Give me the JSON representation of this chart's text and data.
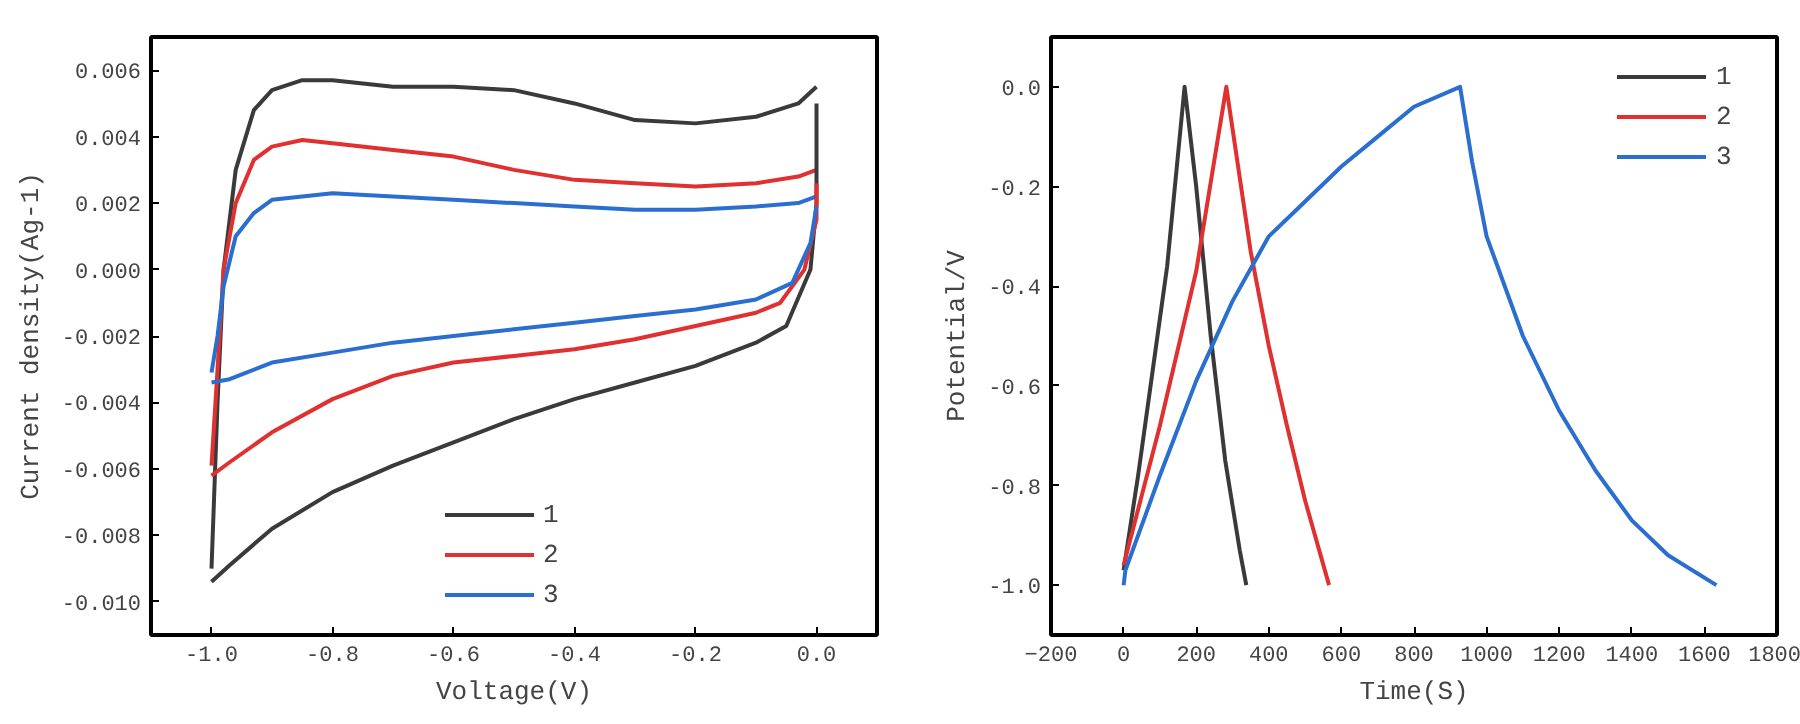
{
  "chart_data": [
    {
      "type": "line",
      "xlabel": "Voltage(V)",
      "ylabel": "Current density(Ag-1)",
      "xlim": [
        -1.1,
        0.1
      ],
      "ylim": [
        -0.011,
        0.007
      ],
      "xticks": [
        {
          "value": -1.0,
          "label": "-1.0"
        },
        {
          "value": -0.8,
          "label": "-0.8"
        },
        {
          "value": -0.6,
          "label": "-0.6"
        },
        {
          "value": -0.4,
          "label": "-0.4"
        },
        {
          "value": -0.2,
          "label": "-0.2"
        },
        {
          "value": 0.0,
          "label": "0.0"
        }
      ],
      "yticks": [
        {
          "value": 0.006,
          "label": "0.006"
        },
        {
          "value": 0.004,
          "label": "0.004"
        },
        {
          "value": 0.002,
          "label": "0.002"
        },
        {
          "value": 0.0,
          "label": "0.000"
        },
        {
          "value": -0.002,
          "label": "-0.002"
        },
        {
          "value": -0.004,
          "label": "-0.004"
        },
        {
          "value": -0.006,
          "label": "-0.006"
        },
        {
          "value": -0.008,
          "label": "-0.008"
        },
        {
          "value": -0.01,
          "label": "-0.010"
        }
      ],
      "grid": false,
      "legend": "bottom",
      "line_style": "solid",
      "series": [
        {
          "name": "1",
          "color": "#3a3a3a",
          "x": [
            -1.0,
            -0.99,
            -0.98,
            -0.96,
            -0.93,
            -0.9,
            -0.85,
            -0.8,
            -0.7,
            -0.6,
            -0.5,
            -0.4,
            -0.3,
            -0.2,
            -0.1,
            -0.03,
            0.0
          ],
          "values": [
            -0.009,
            -0.004,
            0.0,
            0.003,
            0.0048,
            0.0054,
            0.0057,
            0.0057,
            0.0055,
            0.0055,
            0.0054,
            0.005,
            0.0045,
            0.0044,
            0.0046,
            0.005,
            0.0055
          ]
        },
        {
          "name": "2",
          "color": "#e03030",
          "x": [
            -1.0,
            -0.99,
            -0.98,
            -0.96,
            -0.93,
            -0.9,
            -0.85,
            -0.8,
            -0.7,
            -0.6,
            -0.5,
            -0.4,
            -0.3,
            -0.2,
            -0.1,
            -0.03,
            0.0
          ],
          "values": [
            -0.0059,
            -0.003,
            0.0,
            0.002,
            0.0033,
            0.0037,
            0.0039,
            0.0038,
            0.0036,
            0.0034,
            0.003,
            0.0027,
            0.0026,
            0.0025,
            0.0026,
            0.0028,
            0.003
          ]
        },
        {
          "name": "3",
          "color": "#2a6fcf",
          "x": [
            -1.0,
            -0.99,
            -0.98,
            -0.96,
            -0.93,
            -0.9,
            -0.85,
            -0.8,
            -0.7,
            -0.6,
            -0.5,
            -0.4,
            -0.3,
            -0.2,
            -0.1,
            -0.03,
            0.0
          ],
          "values": [
            -0.0031,
            -0.002,
            -0.0005,
            0.001,
            0.0017,
            0.0021,
            0.0022,
            0.0023,
            0.0022,
            0.0021,
            0.002,
            0.0019,
            0.0018,
            0.0018,
            0.0019,
            0.002,
            0.0022
          ]
        },
        {
          "color": "#3a3a3a",
          "x": [
            -1.0,
            -0.97,
            -0.9,
            -0.8,
            -0.7,
            -0.6,
            -0.5,
            -0.4,
            -0.3,
            -0.2,
            -0.1,
            -0.05,
            -0.01,
            0.0,
            0.0
          ],
          "values": [
            -0.0094,
            -0.0089,
            -0.0078,
            -0.0067,
            -0.0059,
            -0.0052,
            -0.0045,
            -0.0039,
            -0.0034,
            -0.0029,
            -0.0022,
            -0.0017,
            0.0,
            0.002,
            0.005
          ]
        },
        {
          "color": "#e03030",
          "x": [
            -1.0,
            -0.97,
            -0.9,
            -0.8,
            -0.7,
            -0.6,
            -0.5,
            -0.4,
            -0.3,
            -0.2,
            -0.1,
            -0.06,
            -0.02,
            0.0,
            0.0
          ],
          "values": [
            -0.0062,
            -0.0058,
            -0.0049,
            -0.0039,
            -0.0032,
            -0.0028,
            -0.0026,
            -0.0024,
            -0.0021,
            -0.0017,
            -0.0013,
            -0.001,
            0.0,
            0.0015,
            0.0026
          ]
        },
        {
          "color": "#2a6fcf",
          "x": [
            -1.0,
            -0.97,
            -0.9,
            -0.8,
            -0.7,
            -0.6,
            -0.5,
            -0.4,
            -0.3,
            -0.2,
            -0.1,
            -0.04,
            -0.01,
            0.0
          ],
          "values": [
            -0.0034,
            -0.0033,
            -0.0028,
            -0.0025,
            -0.0022,
            -0.002,
            -0.0018,
            -0.0016,
            -0.0014,
            -0.0012,
            -0.0009,
            -0.0004,
            0.0008,
            0.0019
          ]
        }
      ]
    },
    {
      "type": "line",
      "xlabel": "Time(S)",
      "ylabel": "Potential/V",
      "xlim": [
        -200,
        1800
      ],
      "ylim": [
        -1.1,
        0.1
      ],
      "xticks": [
        -200,
        0,
        200,
        400,
        600,
        800,
        1000,
        1200,
        1400,
        1600,
        1800
      ],
      "yticks": [
        {
          "value": 0.0,
          "label": "0.0"
        },
        {
          "value": -0.2,
          "label": "-0.2"
        },
        {
          "value": -0.4,
          "label": "-0.4"
        },
        {
          "value": -0.6,
          "label": "-0.6"
        },
        {
          "value": -0.8,
          "label": "-0.8"
        },
        {
          "value": -1.0,
          "label": "-1.0"
        }
      ],
      "grid": false,
      "legend": "top right",
      "line_style": "solid",
      "series": [
        {
          "name": "1",
          "color": "#3a3a3a",
          "x": [
            0,
            40,
            80,
            120,
            168,
            200,
            240,
            280,
            320,
            338
          ],
          "values": [
            -0.97,
            -0.78,
            -0.57,
            -0.36,
            0.0,
            -0.2,
            -0.5,
            -0.75,
            -0.93,
            -1.0
          ]
        },
        {
          "name": "2",
          "color": "#e03030",
          "x": [
            0,
            100,
            200,
            283,
            350,
            400,
            450,
            500,
            566
          ],
          "values": [
            -0.96,
            -0.68,
            -0.37,
            0.0,
            -0.33,
            -0.52,
            -0.68,
            -0.83,
            -1.0
          ]
        },
        {
          "name": "3",
          "color": "#2a6fcf",
          "x": [
            0,
            5,
            100,
            200,
            300,
            400,
            500,
            600,
            700,
            800,
            927,
            960,
            1000,
            1100,
            1200,
            1300,
            1400,
            1500,
            1633
          ],
          "values": [
            -1.0,
            -0.97,
            -0.78,
            -0.59,
            -0.43,
            -0.3,
            -0.23,
            -0.16,
            -0.1,
            -0.04,
            0.0,
            -0.15,
            -0.3,
            -0.5,
            -0.65,
            -0.77,
            -0.87,
            -0.94,
            -1.0
          ]
        }
      ]
    }
  ]
}
